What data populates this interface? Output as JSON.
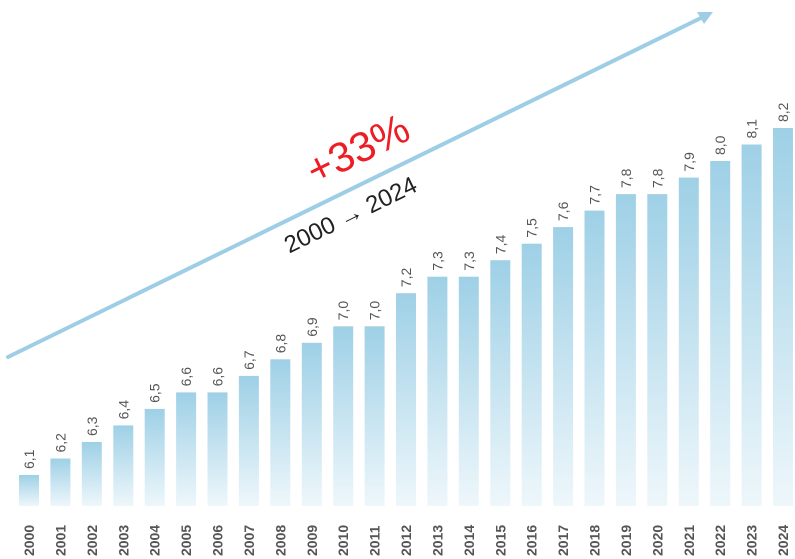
{
  "chart_data": {
    "type": "bar",
    "categories": [
      "2000",
      "2001",
      "2002",
      "2003",
      "2004",
      "2005",
      "2006",
      "2007",
      "2008",
      "2009",
      "2010",
      "2011",
      "2012",
      "2013",
      "2014",
      "2015",
      "2016",
      "2017",
      "2018",
      "2019",
      "2020",
      "2021",
      "2022",
      "2023",
      "2024"
    ],
    "values": [
      6.1,
      6.2,
      6.3,
      6.4,
      6.5,
      6.6,
      6.6,
      6.7,
      6.8,
      6.9,
      7.0,
      7.0,
      7.2,
      7.3,
      7.3,
      7.4,
      7.5,
      7.6,
      7.7,
      7.8,
      7.8,
      7.9,
      8.0,
      8.1,
      8.2
    ],
    "value_labels": [
      "6,1",
      "6,2",
      "6,3",
      "6,4",
      "6,5",
      "6,6",
      "6,6",
      "6,7",
      "6,8",
      "6,9",
      "7,0",
      "7,0",
      "7,2",
      "7,3",
      "7,3",
      "7,4",
      "7,5",
      "7,6",
      "7,7",
      "7,8",
      "7,8",
      "7,9",
      "8,0",
      "8,1",
      "8,2"
    ],
    "title": "",
    "xlabel": "",
    "ylabel": "",
    "grid": false,
    "legend": "none",
    "annotations": {
      "growth_pct": "+33%",
      "growth_range": "2000 → 2024"
    },
    "colors": {
      "bar_top": "#9ed0e6",
      "bar_bottom": "#eef7fb",
      "arrow": "#9ecde6",
      "growth_pct": "#ee1c25",
      "growth_range": "#222222",
      "labels": "#555555"
    }
  }
}
